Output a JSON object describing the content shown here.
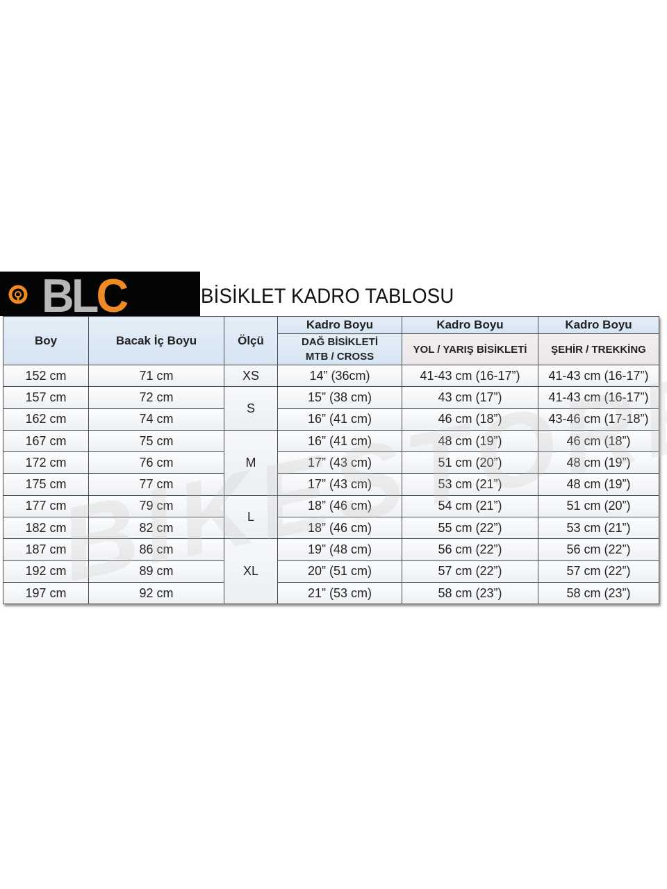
{
  "logo": {
    "text_bl": "BL",
    "text_c": "C",
    "accent": "#f08a24"
  },
  "title": "BİSİKLET KADRO TABLOSU",
  "watermark": "BIKESTORE",
  "table": {
    "headers": {
      "boy": "Boy",
      "bacak": "Bacak İç Boyu",
      "olcu": "Ölçü",
      "kadro1": "Kadro Boyu",
      "kadro2": "Kadro Boyu",
      "kadro3": "Kadro Boyu",
      "sub1a": "DAĞ BİSİKLETİ",
      "sub1b": "MTB / CROSS",
      "sub2": "YOL / YARIŞ BİSİKLETİ",
      "sub3": "ŞEHİR / TREKKİNG"
    },
    "sizes": [
      "XS",
      "S",
      "M",
      "L",
      "XL"
    ],
    "rows": [
      [
        "152 cm",
        "71 cm",
        "14” (36cm)",
        "41-43 cm (16-17”)",
        "41-43 cm (16-17”)"
      ],
      [
        "157 cm",
        "72 cm",
        "15” (38 cm)",
        "43 cm (17”)",
        "41-43 cm (16-17”)"
      ],
      [
        "162 cm",
        "74 cm",
        "16” (41 cm)",
        "46 cm (18”)",
        "43-46 cm (17-18”)"
      ],
      [
        "167 cm",
        "75 cm",
        "16” (41 cm)",
        "48 cm (19”)",
        "46 cm (18”)"
      ],
      [
        "172 cm",
        "76 cm",
        "17” (43 cm)",
        "51 cm (20”)",
        "48 cm (19”)"
      ],
      [
        "175 cm",
        "77 cm",
        "17” (43 cm)",
        "53 cm (21”)",
        "48 cm (19”)"
      ],
      [
        "177 cm",
        "79 cm",
        "18” (46 cm)",
        "54 cm (21”)",
        "51 cm (20”)"
      ],
      [
        "182 cm",
        "82 cm",
        "18” (46 cm)",
        "55 cm (22”)",
        "53 cm (21”)"
      ],
      [
        "187 cm",
        "86 cm",
        "19” (48 cm)",
        "56 cm (22”)",
        "56 cm (22”)"
      ],
      [
        "192 cm",
        "89 cm",
        "20” (51 cm)",
        "57 cm (22”)",
        "57 cm (22”)"
      ],
      [
        "197 cm",
        "92 cm",
        "21” (53 cm)",
        "58 cm (23”)",
        "58 cm (23”)"
      ]
    ]
  }
}
